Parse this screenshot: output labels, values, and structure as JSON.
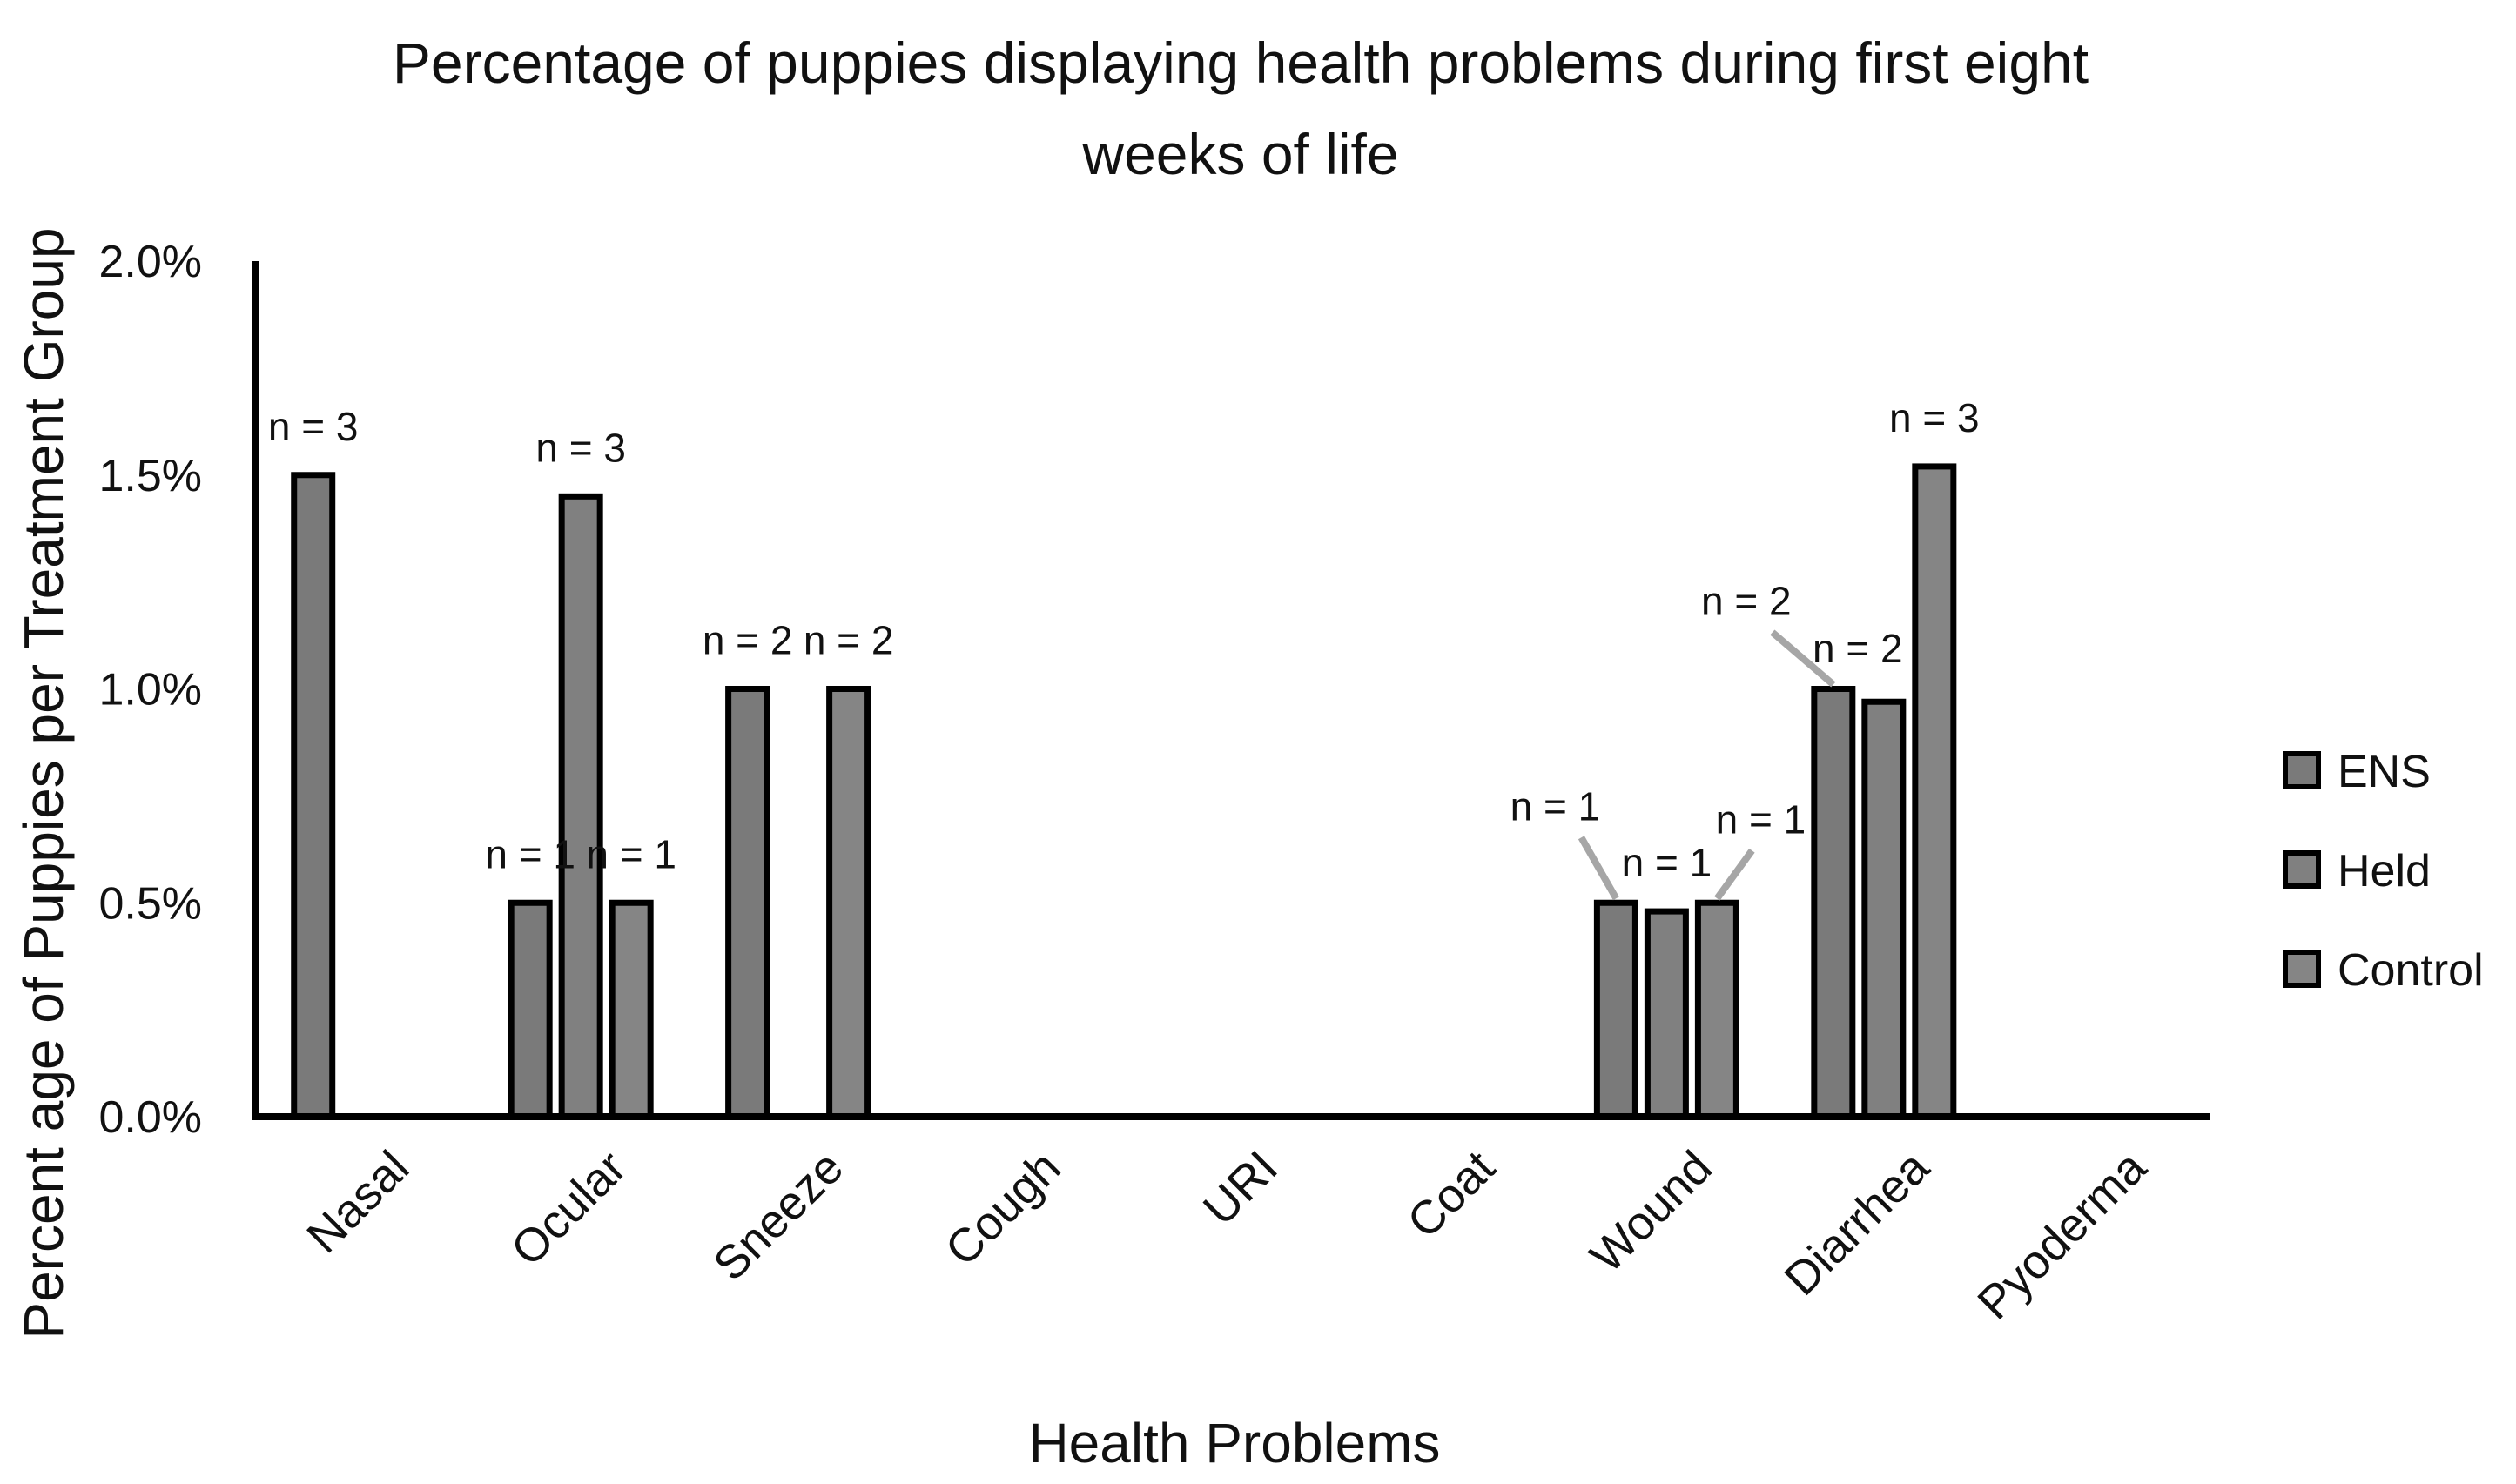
{
  "chart_data": {
    "type": "bar",
    "title": "Percentage of puppies displaying health problems during first eight weeks of life",
    "title_lines": [
      "Percentage of puppies displaying health problems during first eight",
      "weeks of life"
    ],
    "xlabel": "Health Problems",
    "ylabel": "Percent age of Puppies per Treatment Group",
    "ylim": [
      0,
      2.0
    ],
    "yticks": [
      "0.0%",
      "0.5%",
      "1.0%",
      "1.5%",
      "2.0%"
    ],
    "legend_position": "right",
    "categories": [
      "Nasal",
      "Ocular",
      "Sneeze",
      "Cough",
      "URI",
      "Coat",
      "Wound",
      "Diarrhea",
      "Pyoderma"
    ],
    "series": [
      {
        "name": "ENS",
        "color": "#7a7a7a",
        "values": [
          1.5,
          0.5,
          1.0,
          0,
          0,
          0,
          0.5,
          1.0,
          0
        ]
      },
      {
        "name": "Held",
        "color": "#808080",
        "values": [
          0,
          1.45,
          0,
          0,
          0,
          0,
          0.48,
          0.97,
          0
        ]
      },
      {
        "name": "Control",
        "color": "#858585",
        "values": [
          0,
          0.5,
          1.0,
          0,
          0,
          0,
          0.5,
          1.52,
          0
        ]
      }
    ],
    "annotations": [
      {
        "category": "Nasal",
        "series": "ENS",
        "text": "n = 3"
      },
      {
        "category": "Ocular",
        "series": "ENS",
        "text": "n = 1"
      },
      {
        "category": "Ocular",
        "series": "Held",
        "text": "n = 3"
      },
      {
        "category": "Ocular",
        "series": "Control",
        "text": "n = 1"
      },
      {
        "category": "Sneeze",
        "series": "ENS",
        "text": "n = 2"
      },
      {
        "category": "Sneeze",
        "series": "Control",
        "text": "n = 2"
      },
      {
        "category": "Wound",
        "series": "ENS",
        "text": "n = 1"
      },
      {
        "category": "Wound",
        "series": "Held",
        "text": "n = 1"
      },
      {
        "category": "Wound",
        "series": "Control",
        "text": "n = 1"
      },
      {
        "category": "Diarrhea",
        "series": "ENS",
        "text": "n = 2"
      },
      {
        "category": "Diarrhea",
        "series": "Held",
        "text": "n = 2"
      },
      {
        "category": "Diarrhea",
        "series": "Control",
        "text": "n = 3"
      }
    ]
  }
}
